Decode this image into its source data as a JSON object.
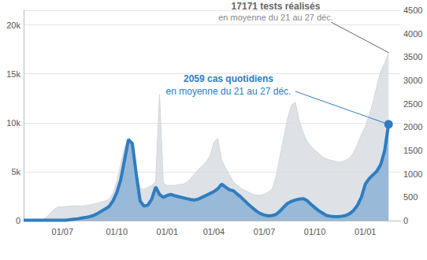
{
  "chart_data": {
    "type": "area",
    "grid": true,
    "categories": [
      null,
      null,
      null,
      null,
      null,
      null,
      null,
      null,
      null,
      null,
      "01/07",
      null,
      null,
      null,
      null,
      null,
      null,
      null,
      null,
      null,
      null,
      null,
      null,
      null,
      "01/10",
      null,
      null,
      null,
      null,
      null,
      null,
      null,
      null,
      null,
      null,
      null,
      null,
      "01/01",
      null,
      null,
      null,
      null,
      null,
      null,
      null,
      null,
      null,
      null,
      null,
      "01/04",
      null,
      null,
      null,
      null,
      null,
      null,
      null,
      null,
      null,
      null,
      null,
      null,
      "01/07",
      null,
      null,
      null,
      null,
      null,
      null,
      null,
      null,
      null,
      null,
      null,
      null,
      "01/10",
      null,
      null,
      null,
      null,
      null,
      null,
      null,
      null,
      null,
      null,
      null,
      null,
      "01/01",
      null,
      null,
      null,
      null,
      null,
      null,
      null,
      null,
      null
    ],
    "ylim": [
      0,
      21500
    ],
    "yticks": [
      0,
      {
        "value": 5000,
        "label": "5k"
      },
      {
        "value": 10000,
        "label": "10k"
      },
      {
        "value": 15000,
        "label": "15k"
      },
      {
        "value": 20000,
        "label": "20k"
      }
    ],
    "y2lim": [
      0,
      4500
    ],
    "y2ticks": [
      0,
      500,
      1000,
      1500,
      2000,
      2500,
      3000,
      3500,
      4000,
      4500
    ],
    "series": [
      {
        "color": "#d3d7de",
        "axis": "y",
        "annotation": [
          "17171 tests réalisés",
          "en moyenne du 21 au 27 déc."
        ],
        "values": [
          100,
          100,
          100,
          100,
          100,
          100,
          400,
          800,
          1200,
          1400,
          1400,
          1450,
          1500,
          1500,
          1500,
          1500,
          1550,
          1600,
          1700,
          1800,
          1900,
          2000,
          2200,
          2800,
          4000,
          5800,
          7500,
          8500,
          7800,
          5200,
          3300,
          3200,
          3400,
          3600,
          4000,
          12900,
          3800,
          3600,
          3600,
          3600,
          3700,
          3700,
          3900,
          4300,
          4800,
          5200,
          5600,
          6000,
          6600,
          8000,
          8400,
          6200,
          5400,
          4700,
          4000,
          3600,
          3300,
          3100,
          2900,
          2700,
          2600,
          2600,
          2700,
          2900,
          3200,
          4500,
          6500,
          8500,
          10500,
          11800,
          12100,
          10200,
          9000,
          8100,
          7600,
          7200,
          6900,
          6500,
          6300,
          6200,
          6100,
          6000,
          6000,
          6200,
          6400,
          7000,
          7800,
          8800,
          9600,
          10800,
          12100,
          13800,
          15300,
          16100,
          17171,
          null,
          null,
          null
        ]
      },
      {
        "color": "#2f7dc1",
        "axis": "y2",
        "marker": "circle",
        "annotation": [
          "2059 cas quotidiens",
          "en moyenne du 21 au 27 déc."
        ],
        "values": [
          10,
          10,
          10,
          10,
          10,
          10,
          10,
          10,
          10,
          10,
          10,
          10,
          20,
          30,
          40,
          55,
          70,
          85,
          110,
          150,
          200,
          250,
          300,
          420,
          600,
          870,
          1300,
          1735,
          1650,
          1000,
          420,
          310,
          330,
          460,
          720,
          560,
          500,
          540,
          560,
          530,
          510,
          490,
          470,
          450,
          440,
          460,
          500,
          540,
          580,
          620,
          680,
          780,
          720,
          660,
          640,
          570,
          500,
          420,
          340,
          270,
          200,
          150,
          120,
          100,
          110,
          130,
          200,
          290,
          370,
          410,
          440,
          460,
          470,
          430,
          350,
          280,
          210,
          160,
          110,
          95,
          85,
          85,
          95,
          110,
          150,
          220,
          330,
          500,
          780,
          900,
          980,
          1060,
          1200,
          1500,
          2059,
          null,
          null,
          null
        ]
      }
    ]
  }
}
